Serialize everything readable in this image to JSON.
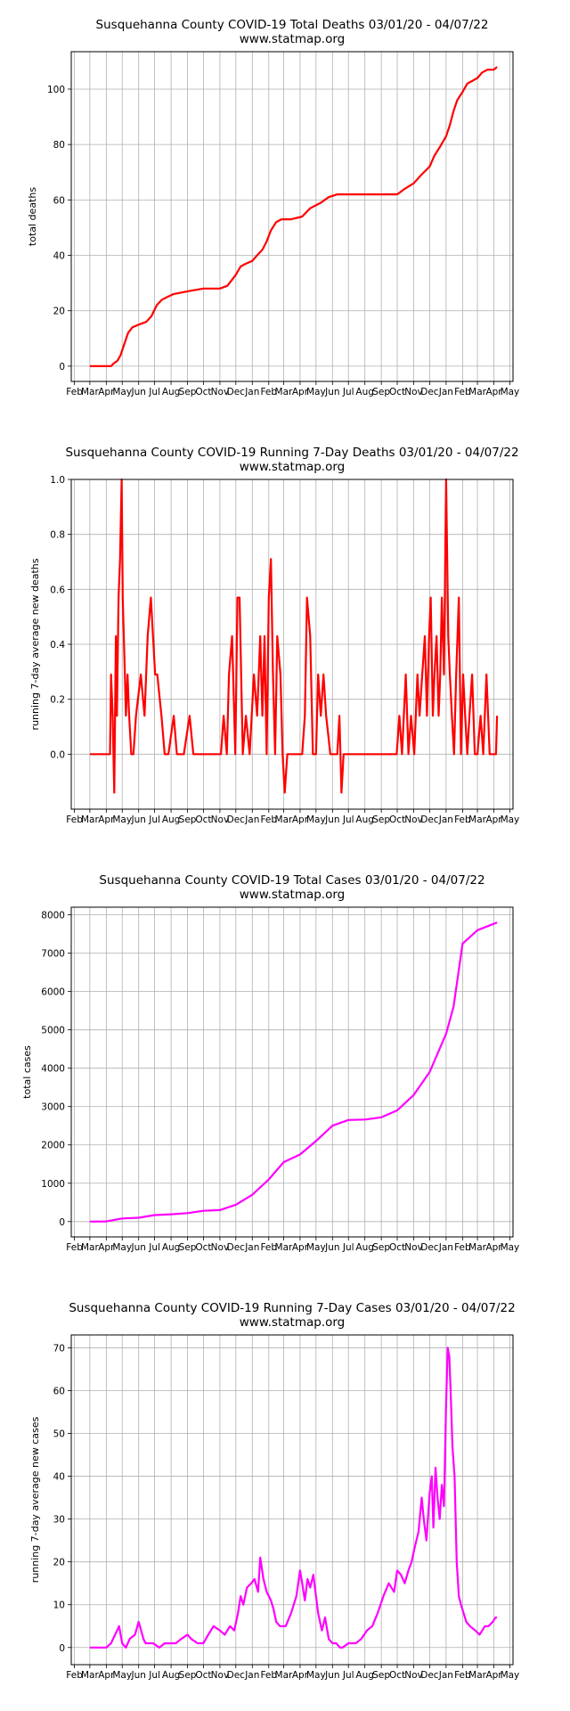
{
  "chart_data": [
    {
      "type": "line",
      "title": "Susquehanna County COVID-19 Total Deaths 03/01/20 - 04/07/22",
      "subtitle": "www.statmap.org",
      "xlabel": "",
      "ylabel": "total deaths",
      "x_tick_labels": [
        "Feb",
        "Mar",
        "Apr",
        "May",
        "Jun",
        "Jul",
        "Aug",
        "Sep",
        "Oct",
        "Nov",
        "Dec",
        "Jan",
        "Feb",
        "Mar",
        "Apr",
        "May",
        "Jun",
        "Jul",
        "Aug",
        "Sep",
        "Oct",
        "Nov",
        "Dec",
        "Jan",
        "Feb",
        "Mar",
        "Apr",
        "May"
      ],
      "y_ticks": [
        0,
        20,
        40,
        60,
        80,
        100
      ],
      "ylim": [
        -5.5,
        113.5
      ],
      "grid": true,
      "color": "#ff0000",
      "series": [
        {
          "x": [
            "2020-03-01",
            "2020-04-10",
            "2020-04-15",
            "2020-04-22",
            "2020-04-28",
            "2020-05-05",
            "2020-05-12",
            "2020-05-20",
            "2020-06-01",
            "2020-06-15",
            "2020-06-25",
            "2020-07-05",
            "2020-07-15",
            "2020-07-25",
            "2020-08-05",
            "2020-09-01",
            "2020-10-01",
            "2020-11-01",
            "2020-11-15",
            "2020-12-01",
            "2020-12-10",
            "2020-12-20",
            "2021-01-01",
            "2021-01-10",
            "2021-01-20",
            "2021-01-28",
            "2021-02-05",
            "2021-02-15",
            "2021-02-25",
            "2021-03-15",
            "2021-04-05",
            "2021-04-20",
            "2021-05-10",
            "2021-05-25",
            "2021-06-10",
            "2021-07-01",
            "2021-08-01",
            "2021-09-01",
            "2021-10-01",
            "2021-10-15",
            "2021-11-01",
            "2021-11-15",
            "2021-12-01",
            "2021-12-10",
            "2021-12-20",
            "2022-01-01",
            "2022-01-08",
            "2022-01-15",
            "2022-01-22",
            "2022-02-01",
            "2022-02-10",
            "2022-02-20",
            "2022-03-01",
            "2022-03-10",
            "2022-03-20",
            "2022-04-01",
            "2022-04-07"
          ],
          "y": [
            0,
            0,
            1,
            2,
            4,
            8,
            12,
            14,
            15,
            16,
            18,
            22,
            24,
            25,
            26,
            27,
            28,
            28,
            29,
            33,
            36,
            37,
            38,
            40,
            42,
            45,
            49,
            52,
            53,
            53,
            54,
            57,
            59,
            61,
            62,
            62,
            62,
            62,
            62,
            64,
            66,
            69,
            72,
            76,
            79,
            83,
            87,
            92,
            96,
            99,
            102,
            103,
            104,
            106,
            107,
            107,
            108
          ]
        }
      ]
    },
    {
      "type": "line",
      "title": "Susquehanna County COVID-19 Running 7-Day Deaths 03/01/20 - 04/07/22",
      "subtitle": "www.statmap.org",
      "xlabel": "",
      "ylabel": "running 7-day average new deaths",
      "x_tick_labels": [
        "Feb",
        "Mar",
        "Apr",
        "May",
        "Jun",
        "Jul",
        "Aug",
        "Sep",
        "Oct",
        "Nov",
        "Dec",
        "Jan",
        "Feb",
        "Mar",
        "Apr",
        "May",
        "Jun",
        "Jul",
        "Aug",
        "Sep",
        "Oct",
        "Nov",
        "Dec",
        "Jan",
        "Feb",
        "Mar",
        "Apr",
        "May"
      ],
      "y_ticks": [
        0.0,
        0.2,
        0.4,
        0.6,
        0.8,
        1.0
      ],
      "ylim": [
        -0.2,
        1.0
      ],
      "grid": true,
      "color": "#ff0000",
      "series": [
        {
          "x": [
            "2020-03-01",
            "2020-04-08",
            "2020-04-10",
            "2020-04-13",
            "2020-04-16",
            "2020-04-19",
            "2020-04-21",
            "2020-04-24",
            "2020-04-27",
            "2020-04-30",
            "2020-05-02",
            "2020-05-04",
            "2020-05-06",
            "2020-05-08",
            "2020-05-11",
            "2020-05-14",
            "2020-05-18",
            "2020-05-22",
            "2020-05-27",
            "2020-06-05",
            "2020-06-12",
            "2020-06-18",
            "2020-06-24",
            "2020-06-28",
            "2020-07-02",
            "2020-07-06",
            "2020-07-14",
            "2020-07-20",
            "2020-07-27",
            "2020-08-06",
            "2020-08-12",
            "2020-08-18",
            "2020-08-25",
            "2020-09-05",
            "2020-09-12",
            "2020-09-18",
            "2020-10-01",
            "2020-10-20",
            "2020-11-03",
            "2020-11-08",
            "2020-11-14",
            "2020-11-18",
            "2020-11-24",
            "2020-11-30",
            "2020-12-04",
            "2020-12-08",
            "2020-12-14",
            "2020-12-20",
            "2020-12-27",
            "2021-01-04",
            "2021-01-10",
            "2021-01-16",
            "2021-01-20",
            "2021-01-24",
            "2021-01-28",
            "2021-02-01",
            "2021-02-05",
            "2021-02-09",
            "2021-02-13",
            "2021-02-17",
            "2021-02-23",
            "2021-02-27",
            "2021-03-03",
            "2021-03-08",
            "2021-03-13",
            "2021-03-20",
            "2021-04-05",
            "2021-04-10",
            "2021-04-14",
            "2021-04-20",
            "2021-04-25",
            "2021-05-01",
            "2021-05-05",
            "2021-05-10",
            "2021-05-15",
            "2021-05-20",
            "2021-05-28",
            "2021-06-10",
            "2021-06-14",
            "2021-06-18",
            "2021-06-22",
            "2021-06-28",
            "2021-08-01",
            "2021-09-01",
            "2021-09-30",
            "2021-10-05",
            "2021-10-10",
            "2021-10-17",
            "2021-10-22",
            "2021-10-27",
            "2021-11-02",
            "2021-11-08",
            "2021-11-12",
            "2021-11-17",
            "2021-11-22",
            "2021-11-26",
            "2021-11-30",
            "2021-12-03",
            "2021-12-07",
            "2021-12-10",
            "2021-12-14",
            "2021-12-18",
            "2021-12-21",
            "2021-12-24",
            "2021-12-28",
            "2022-01-01",
            "2022-01-05",
            "2022-01-08",
            "2022-01-12",
            "2022-01-16",
            "2022-01-20",
            "2022-01-25",
            "2022-01-29",
            "2022-02-02",
            "2022-02-06",
            "2022-02-10",
            "2022-02-14",
            "2022-02-19",
            "2022-02-24",
            "2022-03-01",
            "2022-03-07",
            "2022-03-12",
            "2022-03-18",
            "2022-03-24",
            "2022-04-01",
            "2022-04-05",
            "2022-04-07"
          ],
          "y": [
            0,
            0,
            0.29,
            0.14,
            -0.14,
            0.43,
            0.14,
            0.57,
            0.71,
            1.0,
            0.57,
            0.43,
            0.29,
            0.14,
            0.29,
            0.14,
            0,
            0,
            0.14,
            0.29,
            0.14,
            0.43,
            0.57,
            0.43,
            0.29,
            0.29,
            0.14,
            0,
            0,
            0.14,
            0,
            0,
            0,
            0.14,
            0,
            0,
            0,
            0,
            0,
            0.14,
            0,
            0.29,
            0.43,
            0,
            0.57,
            0.57,
            0,
            0.14,
            0,
            0.29,
            0.14,
            0.43,
            0.14,
            0.43,
            0,
            0.57,
            0.71,
            0.29,
            0,
            0.43,
            0.29,
            0,
            -0.14,
            0,
            0,
            0,
            0,
            0.14,
            0.57,
            0.43,
            0,
            0,
            0.29,
            0.14,
            0.29,
            0.14,
            0,
            0,
            0.14,
            -0.14,
            0,
            0,
            0,
            0,
            0,
            0.14,
            0,
            0.29,
            0,
            0.14,
            0,
            0.29,
            0.14,
            0.29,
            0.43,
            0.14,
            0.43,
            0.57,
            0.14,
            0.29,
            0.43,
            0.14,
            0.29,
            0.57,
            0.29,
            1.0,
            0.43,
            0.29,
            0.14,
            0,
            0.29,
            0.57,
            0,
            0.29,
            0.14,
            0,
            0.14,
            0.29,
            0,
            0,
            0.14,
            0,
            0.29,
            0,
            0,
            0,
            0.14
          ]
        }
      ]
    },
    {
      "type": "line",
      "title": "Susquehanna County COVID-19 Total Cases 03/01/20 - 04/07/22",
      "subtitle": "www.statmap.org",
      "xlabel": "",
      "ylabel": "total cases",
      "x_tick_labels": [
        "Feb",
        "Mar",
        "Apr",
        "May",
        "Jun",
        "Jul",
        "Aug",
        "Sep",
        "Oct",
        "Nov",
        "Dec",
        "Jan",
        "Feb",
        "Mar",
        "Apr",
        "May",
        "Jun",
        "Jul",
        "Aug",
        "Sep",
        "Oct",
        "Nov",
        "Dec",
        "Jan",
        "Feb",
        "Mar",
        "Apr",
        "May"
      ],
      "y_ticks": [
        0,
        1000,
        2000,
        3000,
        4000,
        5000,
        6000,
        7000,
        8000
      ],
      "ylim": [
        -400,
        8200
      ],
      "grid": true,
      "color": "#ff00ff",
      "series": [
        {
          "x": [
            "2020-03-01",
            "2020-04-01",
            "2020-05-01",
            "2020-06-01",
            "2020-07-01",
            "2020-08-01",
            "2020-09-01",
            "2020-10-01",
            "2020-11-01",
            "2020-12-01",
            "2021-01-01",
            "2021-02-01",
            "2021-03-01",
            "2021-04-01",
            "2021-05-01",
            "2021-06-01",
            "2021-07-01",
            "2021-08-01",
            "2021-09-01",
            "2021-10-01",
            "2021-11-01",
            "2021-12-01",
            "2022-01-01",
            "2022-01-15",
            "2022-02-01",
            "2022-03-01",
            "2022-04-07"
          ],
          "y": [
            0,
            5,
            80,
            100,
            170,
            190,
            220,
            280,
            300,
            440,
            700,
            1100,
            1550,
            1750,
            2100,
            2500,
            2650,
            2660,
            2720,
            2900,
            3300,
            3900,
            4900,
            5600,
            7250,
            7600,
            7800
          ]
        }
      ]
    },
    {
      "type": "line",
      "title": "Susquehanna County COVID-19 Running 7-Day Cases 03/01/20 - 04/07/22",
      "subtitle": "www.statmap.org",
      "xlabel": "",
      "ylabel": "running 7-day average new cases",
      "x_tick_labels": [
        "Feb",
        "Mar",
        "Apr",
        "May",
        "Jun",
        "Jul",
        "Aug",
        "Sep",
        "Oct",
        "Nov",
        "Dec",
        "Jan",
        "Feb",
        "Mar",
        "Apr",
        "May",
        "Jun",
        "Jul",
        "Aug",
        "Sep",
        "Oct",
        "Nov",
        "Dec",
        "Jan",
        "Feb",
        "Mar",
        "Apr",
        "May"
      ],
      "y_ticks": [
        0,
        10,
        20,
        30,
        40,
        50,
        60,
        70
      ],
      "ylim": [
        -4,
        73
      ],
      "grid": true,
      "color": "#ff00ff",
      "series": [
        {
          "x": [
            "2020-03-01",
            "2020-04-01",
            "2020-04-10",
            "2020-04-25",
            "2020-05-01",
            "2020-05-08",
            "2020-05-15",
            "2020-05-25",
            "2020-06-01",
            "2020-06-10",
            "2020-06-14",
            "2020-06-20",
            "2020-06-28",
            "2020-07-10",
            "2020-07-20",
            "2020-08-01",
            "2020-08-10",
            "2020-08-20",
            "2020-09-01",
            "2020-09-08",
            "2020-09-20",
            "2020-10-01",
            "2020-10-10",
            "2020-10-20",
            "2020-11-01",
            "2020-11-10",
            "2020-11-20",
            "2020-11-28",
            "2020-12-05",
            "2020-12-10",
            "2020-12-15",
            "2020-12-22",
            "2020-12-30",
            "2021-01-05",
            "2021-01-12",
            "2021-01-16",
            "2021-01-22",
            "2021-01-28",
            "2021-02-05",
            "2021-02-10",
            "2021-02-15",
            "2021-02-22",
            "2021-03-05",
            "2021-03-15",
            "2021-03-25",
            "2021-04-01",
            "2021-04-05",
            "2021-04-10",
            "2021-04-15",
            "2021-04-20",
            "2021-04-26",
            "2021-05-01",
            "2021-05-05",
            "2021-05-12",
            "2021-05-18",
            "2021-05-25",
            "2021-06-01",
            "2021-06-08",
            "2021-06-15",
            "2021-06-20",
            "2021-07-01",
            "2021-07-15",
            "2021-07-25",
            "2021-08-05",
            "2021-08-15",
            "2021-08-25",
            "2021-09-05",
            "2021-09-15",
            "2021-09-25",
            "2021-10-01",
            "2021-10-08",
            "2021-10-15",
            "2021-10-22",
            "2021-10-28",
            "2021-11-04",
            "2021-11-10",
            "2021-11-16",
            "2021-11-20",
            "2021-11-25",
            "2021-12-01",
            "2021-12-05",
            "2021-12-08",
            "2021-12-12",
            "2021-12-16",
            "2021-12-20",
            "2021-12-24",
            "2021-12-28",
            "2022-01-01",
            "2022-01-04",
            "2022-01-07",
            "2022-01-10",
            "2022-01-13",
            "2022-01-17",
            "2022-01-21",
            "2022-01-25",
            "2022-01-29",
            "2022-02-03",
            "2022-02-08",
            "2022-02-15",
            "2022-02-25",
            "2022-03-05",
            "2022-03-15",
            "2022-03-22",
            "2022-03-30",
            "2022-04-04",
            "2022-04-07"
          ],
          "y": [
            0,
            0,
            1,
            5,
            1,
            0,
            2,
            3,
            6,
            2,
            1,
            1,
            1,
            0,
            1,
            1,
            1,
            2,
            3,
            2,
            1,
            1,
            3,
            5,
            4,
            3,
            5,
            4,
            8,
            12,
            10,
            14,
            15,
            16,
            13,
            21,
            16,
            13,
            11,
            9,
            6,
            5,
            5,
            8,
            12,
            18,
            15,
            11,
            16,
            14,
            17,
            12,
            8,
            4,
            7,
            2,
            1,
            1,
            0,
            0,
            1,
            1,
            2,
            4,
            5,
            8,
            12,
            15,
            13,
            18,
            17,
            15,
            18,
            20,
            24,
            27,
            35,
            30,
            25,
            36,
            40,
            28,
            42,
            35,
            30,
            38,
            33,
            57,
            70,
            68,
            58,
            47,
            40,
            20,
            12,
            10,
            8,
            6,
            5,
            4,
            3,
            5,
            5,
            6,
            7,
            7
          ]
        }
      ]
    }
  ]
}
